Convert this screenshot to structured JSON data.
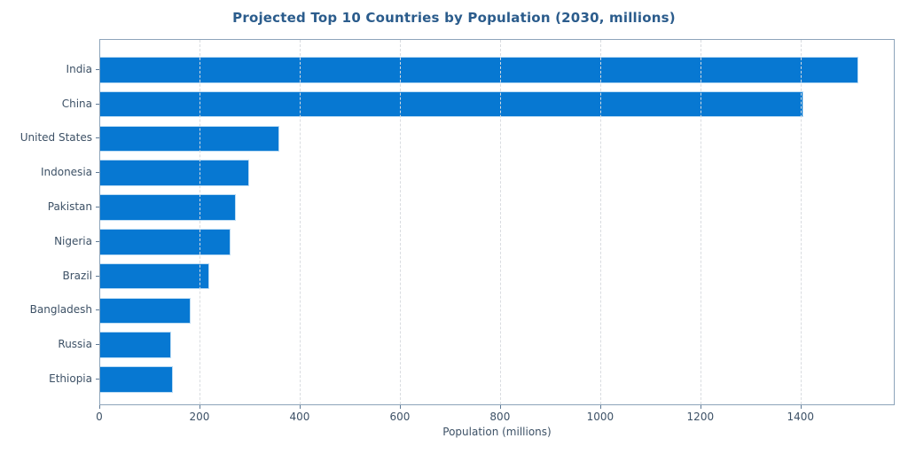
{
  "title": "Projected Top 10 Countries by Population (2030, millions)",
  "chart_data": {
    "type": "bar",
    "orientation": "horizontal",
    "title": "Projected Top 10 Countries by Population (2030, millions)",
    "categories": [
      "India",
      "China",
      "United States",
      "Indonesia",
      "Pakistan",
      "Nigeria",
      "Brazil",
      "Bangladesh",
      "Russia",
      "Ethiopia"
    ],
    "values": [
      1514,
      1404,
      358,
      297,
      270,
      260,
      217,
      180,
      141,
      145
    ],
    "xlabel": "Population (millions)",
    "ylabel": "",
    "xlim": [
      0,
      1588
    ],
    "xticks": [
      0,
      200,
      400,
      600,
      800,
      1000,
      1200,
      1400
    ],
    "grid": "vertical-dashed-above-bars",
    "legend": "none",
    "colors": {
      "bar_fill": "#0778d2",
      "bar_edge": "#bcdcf4",
      "title": "#2b5c8c",
      "tick_label": "#3d5166",
      "tick_mark": "#5f7a96",
      "spine": "#8da4ba",
      "gridline": "#d9dce0",
      "background": "#ffffff"
    }
  }
}
